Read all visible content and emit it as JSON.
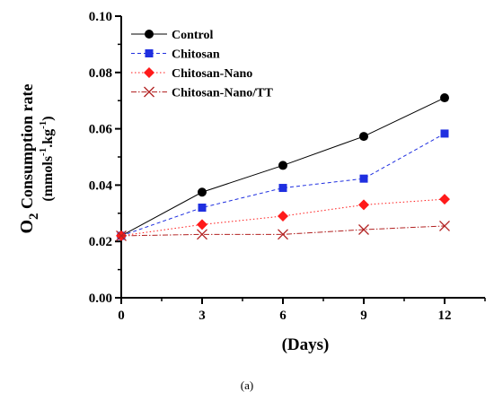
{
  "chart_data": {
    "type": "line",
    "caption": "(a)",
    "xlabel": "(Days)",
    "ylabel": {
      "main": "O",
      "sub": "2",
      "rest": " Consumption rate",
      "unit_open": "(mmols",
      "unit_sup1": "-1",
      "unit_mid": ".kg",
      "unit_sup2": "-1",
      "unit_close": ")"
    },
    "x": [
      0,
      3,
      6,
      9,
      12
    ],
    "xticks": [
      "0",
      "3",
      "6",
      "9",
      "12"
    ],
    "xlim": [
      0,
      13.5
    ],
    "ylim": [
      0,
      0.1
    ],
    "yticks": [
      "0.00",
      "0.02",
      "0.04",
      "0.06",
      "0.08",
      "0.10"
    ],
    "ytick_values": [
      0,
      0.02,
      0.04,
      0.06,
      0.08,
      0.1
    ],
    "legend_position": "top-left",
    "grid": false,
    "series": [
      {
        "name": "Control",
        "values": [
          0.022,
          0.0375,
          0.047,
          0.0573,
          0.071
        ],
        "color": "#000000",
        "marker": "circle",
        "dash": "solid"
      },
      {
        "name": "Chitosan",
        "values": [
          0.022,
          0.032,
          0.039,
          0.0423,
          0.0583
        ],
        "color": "#1f2fe0",
        "marker": "square",
        "dash": "dashed"
      },
      {
        "name": "Chitosan-Nano",
        "values": [
          0.022,
          0.026,
          0.029,
          0.033,
          0.035
        ],
        "color": "#ff1a1a",
        "marker": "diamond",
        "dash": "dotted"
      },
      {
        "name": "Chitosan-Nano/TT",
        "values": [
          0.022,
          0.0225,
          0.0225,
          0.0242,
          0.0255
        ],
        "color": "#b22222",
        "marker": "x",
        "dash": "dashdot"
      }
    ]
  }
}
